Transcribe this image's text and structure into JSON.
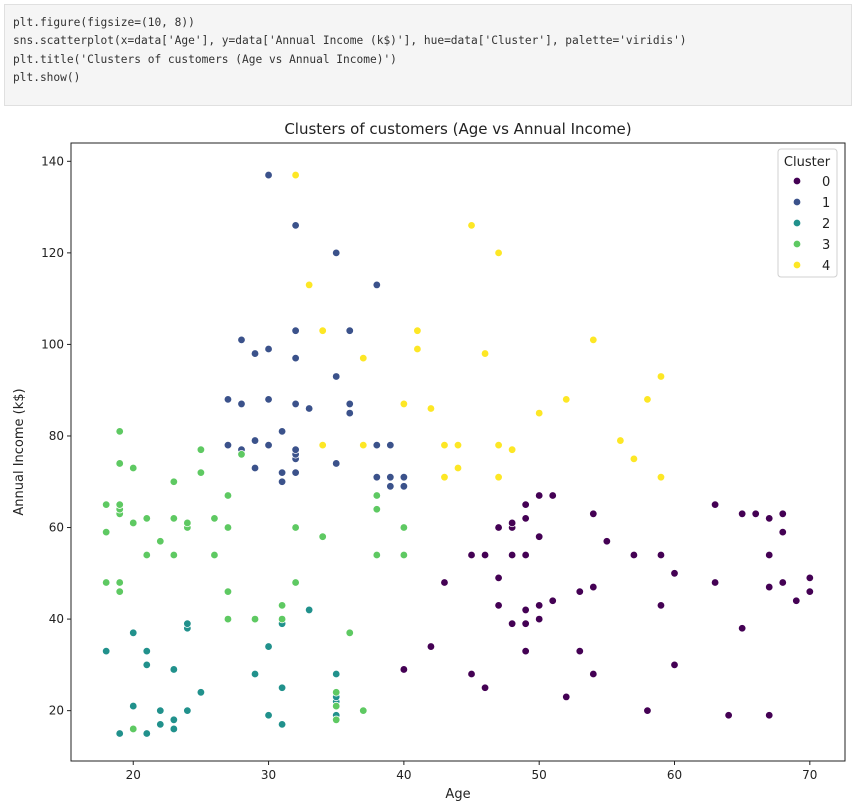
{
  "code_cell": {
    "lines": [
      "plt.figure(figsize=(10, 8))",
      "sns.scatterplot(x=data['Age'], y=data['Annual Income (k$)'], hue=data['Cluster'], palette='viridis')",
      "plt.title('Clusters of customers (Age vs Annual Income)')",
      "plt.show()"
    ]
  },
  "chart_data": {
    "type": "scatter",
    "title": "Clusters of customers (Age vs Annual Income)",
    "xlabel": "Age",
    "ylabel": "Annual Income (k$)",
    "xlim": [
      15.4,
      72.6
    ],
    "ylim": [
      9.0,
      144.0
    ],
    "xticks": [
      20,
      30,
      40,
      50,
      60,
      70
    ],
    "yticks": [
      20,
      40,
      60,
      80,
      100,
      120,
      140
    ],
    "grid": false,
    "legend": {
      "title": "Cluster",
      "placement": "top-right"
    },
    "series": [
      {
        "name": "0",
        "color": "#440154",
        "points": [
          [
            40,
            29
          ],
          [
            42,
            34
          ],
          [
            43,
            48
          ],
          [
            45,
            28
          ],
          [
            45,
            54
          ],
          [
            46,
            25
          ],
          [
            46,
            54
          ],
          [
            47,
            43
          ],
          [
            47,
            49
          ],
          [
            47,
            60
          ],
          [
            48,
            39
          ],
          [
            48,
            54
          ],
          [
            48,
            60
          ],
          [
            48,
            61
          ],
          [
            49,
            33
          ],
          [
            49,
            39
          ],
          [
            49,
            42
          ],
          [
            49,
            54
          ],
          [
            49,
            62
          ],
          [
            49,
            65
          ],
          [
            50,
            40
          ],
          [
            50,
            43
          ],
          [
            50,
            58
          ],
          [
            50,
            67
          ],
          [
            51,
            44
          ],
          [
            51,
            67
          ],
          [
            52,
            23
          ],
          [
            53,
            33
          ],
          [
            53,
            46
          ],
          [
            54,
            28
          ],
          [
            54,
            47
          ],
          [
            54,
            63
          ],
          [
            55,
            57
          ],
          [
            57,
            54
          ],
          [
            58,
            20
          ],
          [
            59,
            43
          ],
          [
            59,
            54
          ],
          [
            60,
            30
          ],
          [
            60,
            50
          ],
          [
            63,
            48
          ],
          [
            63,
            65
          ],
          [
            64,
            19
          ],
          [
            65,
            38
          ],
          [
            65,
            63
          ],
          [
            66,
            63
          ],
          [
            67,
            19
          ],
          [
            67,
            47
          ],
          [
            67,
            54
          ],
          [
            67,
            62
          ],
          [
            68,
            48
          ],
          [
            68,
            59
          ],
          [
            68,
            63
          ],
          [
            69,
            44
          ],
          [
            70,
            46
          ],
          [
            70,
            49
          ]
        ]
      },
      {
        "name": "1",
        "color": "#3b528b",
        "points": [
          [
            27,
            78
          ],
          [
            27,
            88
          ],
          [
            28,
            77
          ],
          [
            28,
            87
          ],
          [
            28,
            101
          ],
          [
            29,
            73
          ],
          [
            29,
            79
          ],
          [
            29,
            98
          ],
          [
            30,
            78
          ],
          [
            30,
            88
          ],
          [
            30,
            99
          ],
          [
            30,
            137
          ],
          [
            31,
            70
          ],
          [
            31,
            72
          ],
          [
            31,
            81
          ],
          [
            32,
            72
          ],
          [
            32,
            75
          ],
          [
            32,
            76
          ],
          [
            32,
            77
          ],
          [
            32,
            87
          ],
          [
            32,
            97
          ],
          [
            32,
            103
          ],
          [
            32,
            126
          ],
          [
            33,
            86
          ],
          [
            35,
            74
          ],
          [
            35,
            93
          ],
          [
            35,
            120
          ],
          [
            36,
            85
          ],
          [
            36,
            87
          ],
          [
            36,
            103
          ],
          [
            38,
            71
          ],
          [
            38,
            78
          ],
          [
            38,
            113
          ],
          [
            39,
            69
          ],
          [
            39,
            71
          ],
          [
            39,
            78
          ],
          [
            40,
            69
          ],
          [
            40,
            71
          ]
        ]
      },
      {
        "name": "2",
        "color": "#21918c",
        "points": [
          [
            18,
            33
          ],
          [
            19,
            15
          ],
          [
            20,
            21
          ],
          [
            20,
            37
          ],
          [
            21,
            15
          ],
          [
            21,
            30
          ],
          [
            21,
            33
          ],
          [
            22,
            17
          ],
          [
            22,
            20
          ],
          [
            23,
            16
          ],
          [
            23,
            18
          ],
          [
            23,
            29
          ],
          [
            24,
            20
          ],
          [
            24,
            38
          ],
          [
            24,
            39
          ],
          [
            25,
            24
          ],
          [
            29,
            28
          ],
          [
            30,
            19
          ],
          [
            30,
            34
          ],
          [
            31,
            17
          ],
          [
            31,
            25
          ],
          [
            31,
            39
          ],
          [
            33,
            42
          ],
          [
            35,
            19
          ],
          [
            35,
            22
          ],
          [
            35,
            23
          ],
          [
            35,
            28
          ]
        ]
      },
      {
        "name": "3",
        "color": "#5ec962",
        "points": [
          [
            18,
            48
          ],
          [
            18,
            59
          ],
          [
            18,
            65
          ],
          [
            19,
            46
          ],
          [
            19,
            48
          ],
          [
            19,
            63
          ],
          [
            19,
            64
          ],
          [
            19,
            65
          ],
          [
            19,
            74
          ],
          [
            19,
            81
          ],
          [
            20,
            16
          ],
          [
            20,
            61
          ],
          [
            20,
            73
          ],
          [
            21,
            54
          ],
          [
            21,
            62
          ],
          [
            22,
            57
          ],
          [
            23,
            54
          ],
          [
            23,
            62
          ],
          [
            23,
            70
          ],
          [
            24,
            60
          ],
          [
            24,
            61
          ],
          [
            25,
            72
          ],
          [
            25,
            77
          ],
          [
            26,
            54
          ],
          [
            26,
            62
          ],
          [
            27,
            40
          ],
          [
            27,
            46
          ],
          [
            27,
            60
          ],
          [
            27,
            67
          ],
          [
            28,
            76
          ],
          [
            29,
            40
          ],
          [
            31,
            40
          ],
          [
            31,
            43
          ],
          [
            32,
            48
          ],
          [
            32,
            60
          ],
          [
            34,
            58
          ],
          [
            35,
            18
          ],
          [
            35,
            21
          ],
          [
            35,
            24
          ],
          [
            36,
            37
          ],
          [
            37,
            20
          ],
          [
            38,
            54
          ],
          [
            38,
            64
          ],
          [
            38,
            67
          ],
          [
            40,
            54
          ],
          [
            40,
            60
          ]
        ]
      },
      {
        "name": "4",
        "color": "#fde725",
        "points": [
          [
            32,
            137
          ],
          [
            33,
            113
          ],
          [
            34,
            78
          ],
          [
            34,
            103
          ],
          [
            37,
            78
          ],
          [
            37,
            97
          ],
          [
            40,
            87
          ],
          [
            41,
            99
          ],
          [
            41,
            103
          ],
          [
            42,
            86
          ],
          [
            43,
            71
          ],
          [
            43,
            78
          ],
          [
            44,
            73
          ],
          [
            44,
            78
          ],
          [
            45,
            126
          ],
          [
            46,
            98
          ],
          [
            47,
            71
          ],
          [
            47,
            78
          ],
          [
            47,
            120
          ],
          [
            48,
            77
          ],
          [
            50,
            85
          ],
          [
            52,
            88
          ],
          [
            54,
            101
          ],
          [
            56,
            79
          ],
          [
            57,
            75
          ],
          [
            58,
            88
          ],
          [
            59,
            71
          ],
          [
            59,
            93
          ]
        ]
      }
    ]
  }
}
